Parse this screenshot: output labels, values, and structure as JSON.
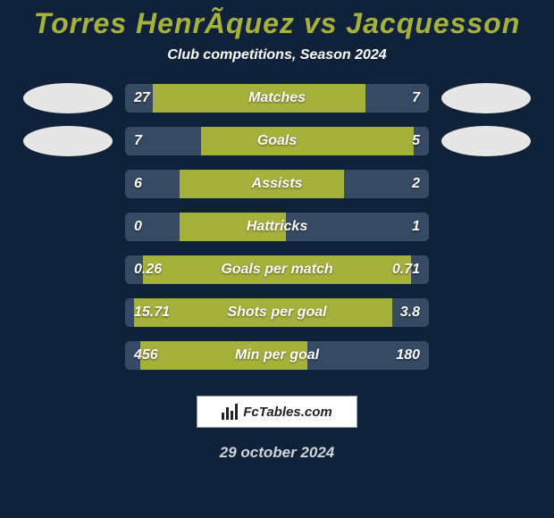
{
  "colors": {
    "background": "#10223a",
    "title": "#a6b13c",
    "subtitle": "#ffffff",
    "bar_base": "#a6b13c",
    "fill": "#364a63",
    "value_text": "#ffffff",
    "metric_text": "#ffffff",
    "avatar": "#e6e6e6",
    "date": "#d0d4d9"
  },
  "typography": {
    "title_fontsize": 32,
    "subtitle_fontsize": 16,
    "value_fontsize": 16,
    "metric_fontsize": 16,
    "date_fontsize": 17
  },
  "title": "Torres HenrÃ­quez vs Jacquesson",
  "subtitle": "Club competitions, Season 2024",
  "date": "29 october 2024",
  "watermark": "FcTables.com",
  "avatars": {
    "show_rows": [
      0,
      1
    ]
  },
  "rows": [
    {
      "label": "Matches",
      "left": "27",
      "right": "7",
      "left_pct": 9,
      "right_pct": 21
    },
    {
      "label": "Goals",
      "left": "7",
      "right": "5",
      "left_pct": 25,
      "right_pct": 5
    },
    {
      "label": "Assists",
      "left": "6",
      "right": "2",
      "left_pct": 18,
      "right_pct": 28
    },
    {
      "label": "Hattricks",
      "left": "0",
      "right": "1",
      "left_pct": 18,
      "right_pct": 47
    },
    {
      "label": "Goals per match",
      "left": "0.26",
      "right": "0.71",
      "left_pct": 6,
      "right_pct": 6
    },
    {
      "label": "Shots per goal",
      "left": "15.71",
      "right": "3.8",
      "left_pct": 3,
      "right_pct": 12
    },
    {
      "label": "Min per goal",
      "left": "456",
      "right": "180",
      "left_pct": 5,
      "right_pct": 40
    }
  ]
}
